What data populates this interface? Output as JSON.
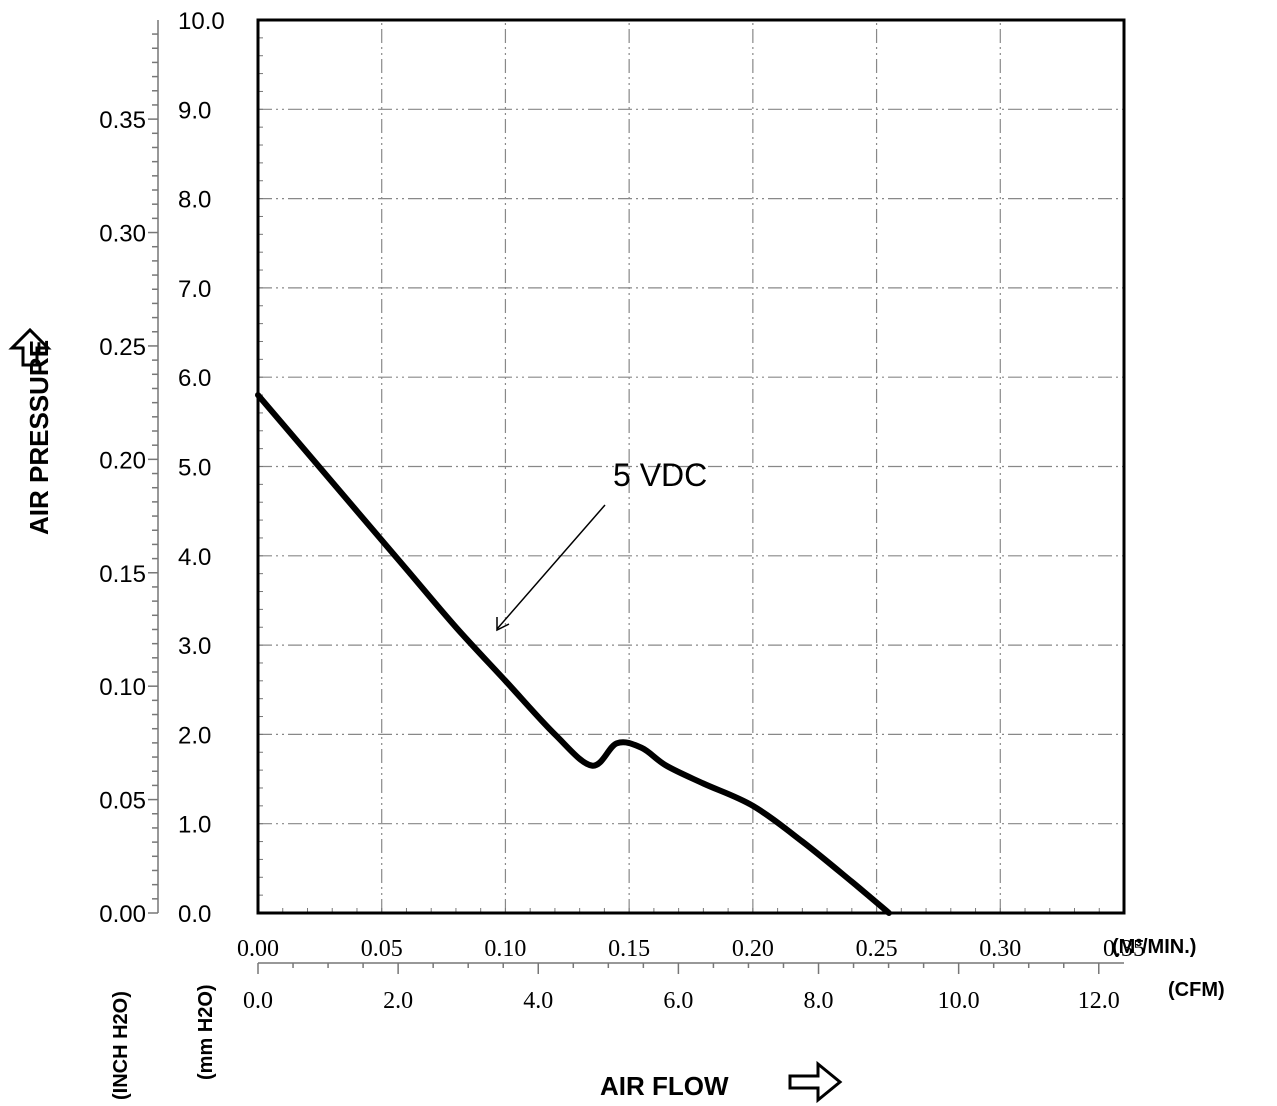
{
  "chart_data": {
    "type": "line",
    "title": "",
    "ylabel": "AIR PRESSURE",
    "xlabel": "AIR FLOW",
    "y_axes": [
      {
        "unit_label": "(mm H2O)",
        "ticks": [
          "0.0",
          "1.0",
          "2.0",
          "3.0",
          "4.0",
          "5.0",
          "6.0",
          "7.0",
          "8.0",
          "9.0",
          "10.0"
        ],
        "ylim": [
          0,
          10
        ]
      },
      {
        "unit_label": "(INCH H2O)",
        "ticks": [
          "0.00",
          "0.05",
          "0.10",
          "0.15",
          "0.20",
          "0.25",
          "0.30",
          "0.35"
        ],
        "ylim": [
          0,
          0.3937
        ]
      }
    ],
    "x_axes": [
      {
        "unit_label": "(M³/MIN.)",
        "ticks": [
          "0.00",
          "0.05",
          "0.10",
          "0.15",
          "0.20",
          "0.25",
          "0.30",
          "0.35"
        ],
        "xlim": [
          0,
          0.35
        ]
      },
      {
        "unit_label": "(CFM)",
        "ticks": [
          "0.0",
          "2.0",
          "4.0",
          "6.0",
          "8.0",
          "10.0",
          "12.0"
        ],
        "xlim": [
          0,
          12.36
        ]
      }
    ],
    "grid": true,
    "series": [
      {
        "name": "5 VDC",
        "x": [
          0.0,
          0.02,
          0.04,
          0.06,
          0.08,
          0.1,
          0.12,
          0.135,
          0.145,
          0.155,
          0.165,
          0.18,
          0.2,
          0.22,
          0.24,
          0.255
        ],
        "y": [
          5.8,
          5.15,
          4.5,
          3.85,
          3.2,
          2.6,
          2.0,
          1.65,
          1.9,
          1.85,
          1.65,
          1.45,
          1.2,
          0.8,
          0.35,
          0.0
        ]
      }
    ],
    "annotation": {
      "text": "5 VDC",
      "x": 0.095,
      "y": 3.25
    }
  }
}
